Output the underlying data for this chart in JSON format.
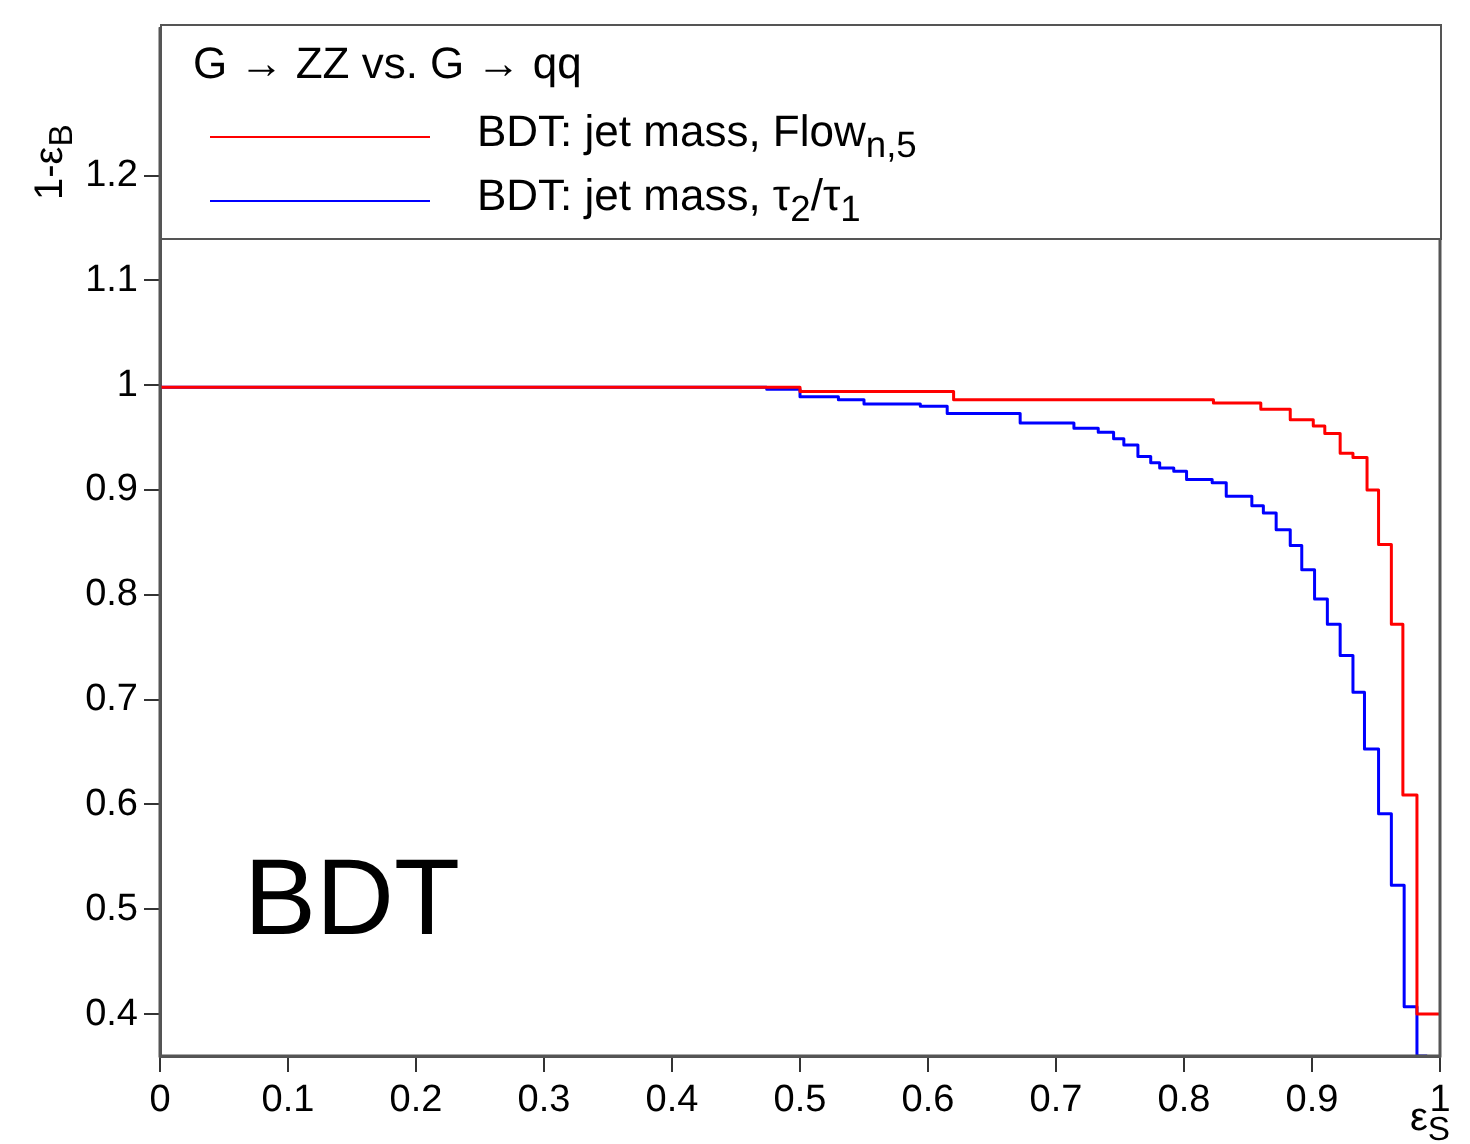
{
  "chart_data": {
    "type": "step",
    "xlabel": "ε$_{S}$",
    "ylabel": "1-ε$_{B}$",
    "legend_title": "G → ZZ vs. G → qq",
    "legend": "top",
    "annotations": [
      "BDT"
    ],
    "xlim": [
      0,
      1
    ],
    "xticks": [
      0,
      0.1,
      0.2,
      0.3,
      0.4,
      0.5,
      0.6,
      0.7,
      0.8,
      0.9,
      1
    ],
    "ylim": [
      0.36,
      1.34
    ],
    "yticks": [
      0.4,
      0.5,
      0.6,
      0.7,
      0.8,
      0.9,
      1,
      1.1,
      1.2
    ],
    "grid": false,
    "series": [
      {
        "name": "BDT: jet mass, Flow$_{n,5}$",
        "color": "#ff0000",
        "x": [
          0,
          0.5,
          0.62,
          0.823,
          0.86,
          0.883,
          0.901,
          0.91,
          0.922,
          0.932,
          0.943,
          0.952,
          0.962,
          0.971,
          0.982,
          0.992,
          1.0
        ],
        "values": [
          1,
          0.998,
          0.994,
          0.986,
          0.983,
          0.977,
          0.967,
          0.961,
          0.954,
          0.935,
          0.931,
          0.9,
          0.848,
          0.772,
          0.609,
          0.4,
          0.4
        ]
      },
      {
        "name": "BDT: jet mass, τ$_{2}$/τ$_{1}$",
        "color": "#0000ff",
        "x": [
          0,
          0.474,
          0.5,
          0.53,
          0.55,
          0.594,
          0.615,
          0.672,
          0.714,
          0.733,
          0.745,
          0.753,
          0.764,
          0.774,
          0.781,
          0.792,
          0.802,
          0.822,
          0.833,
          0.853,
          0.862,
          0.872,
          0.883,
          0.892,
          0.902,
          0.912,
          0.922,
          0.932,
          0.941,
          0.952,
          0.962,
          0.972,
          0.982,
          0.99
        ],
        "values": [
          1,
          0.998,
          0.996,
          0.989,
          0.986,
          0.982,
          0.98,
          0.973,
          0.964,
          0.959,
          0.955,
          0.949,
          0.943,
          0.932,
          0.926,
          0.921,
          0.918,
          0.91,
          0.907,
          0.894,
          0.885,
          0.878,
          0.862,
          0.847,
          0.824,
          0.796,
          0.772,
          0.742,
          0.707,
          0.653,
          0.591,
          0.523,
          0.407,
          0.36
        ]
      }
    ]
  }
}
